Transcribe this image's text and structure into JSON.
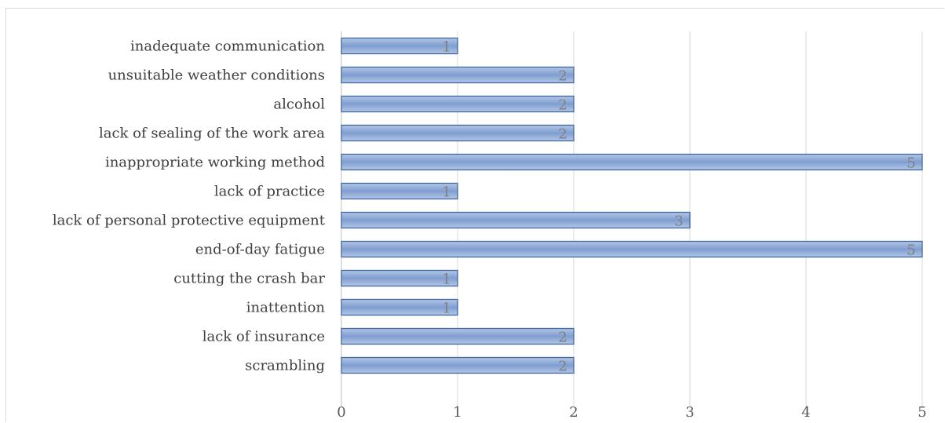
{
  "chart_data": {
    "type": "bar",
    "orientation": "horizontal",
    "categories": [
      "inadequate communication",
      "unsuitable weather conditions",
      "alcohol",
      "lack of sealing of the work area",
      "inappropriate working method",
      "lack of practice",
      "lack of personal protective equipment",
      "end-of-day fatigue",
      "cutting the crash bar",
      "inattention",
      "lack of insurance",
      "scrambling"
    ],
    "values": [
      1,
      2,
      2,
      2,
      5,
      1,
      3,
      5,
      1,
      1,
      2,
      2
    ],
    "title": "",
    "xlabel": "",
    "ylabel": "",
    "xlim": [
      0,
      5
    ],
    "x_ticks": [
      0,
      1,
      2,
      3,
      4,
      5
    ],
    "grid": "vertical",
    "legend": "none",
    "data_labels": true,
    "colors": {
      "bar_fill_light": "#b4c7e7",
      "bar_fill_dark": "#7f9ecf",
      "bar_border": "#41689e",
      "gridline": "#d9d9d9",
      "axis": "#bfbfbf"
    }
  }
}
